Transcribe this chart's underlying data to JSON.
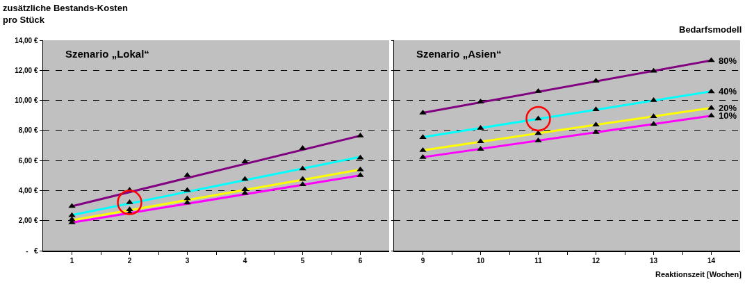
{
  "chart_data": [
    {
      "type": "line",
      "title": "Szenario „Lokal“",
      "ylabel": "zusätzliche Bestands-Kosten\npro Stück",
      "xlim": [
        0.5,
        6.5
      ],
      "xticks": [
        1,
        {
          "value": 1.5,
          "label": null
        },
        2,
        {
          "value": 2.5,
          "label": null
        },
        3,
        {
          "value": 3.5,
          "label": null
        },
        4,
        {
          "value": 4.5,
          "label": null
        },
        5,
        {
          "value": 5.5,
          "label": null
        },
        6
      ],
      "ylim": [
        0,
        14
      ],
      "yticks": [
        {
          "value": 0,
          "label": "-   €"
        },
        {
          "value": 2,
          "label": "2,00 €"
        },
        {
          "value": 4,
          "label": "4,00 €"
        },
        {
          "value": 6,
          "label": "6,00 €"
        },
        {
          "value": 8,
          "label": "8,00 €"
        },
        {
          "value": 10,
          "label": "10,00 €"
        },
        {
          "value": 12,
          "label": "12,00 €"
        },
        {
          "value": 14,
          "label": "14,00 €"
        }
      ],
      "grid": "y",
      "legend": false,
      "line_style": "solid",
      "series": [
        {
          "type": "line",
          "color": "#800080",
          "x": [
            1,
            6
          ],
          "values": [
            2.96,
            7.65
          ]
        },
        {
          "type": "line",
          "color": "#00ffff",
          "x": [
            1,
            6
          ],
          "values": [
            2.37,
            6.24
          ]
        },
        {
          "type": "line",
          "color": "#ffff00",
          "x": [
            1,
            6
          ],
          "values": [
            2.02,
            5.39
          ]
        },
        {
          "type": "line",
          "color": "#ff00ff",
          "x": [
            1,
            6
          ],
          "values": [
            1.87,
            5.01
          ]
        },
        {
          "type": "scatter",
          "marker": "triangle",
          "color": "#000000",
          "x": [
            1,
            2,
            3,
            4,
            5,
            6
          ],
          "values": [
            2.96,
            4.03,
            5.01,
            5.93,
            6.82,
            7.65
          ]
        },
        {
          "type": "scatter",
          "marker": "triangle",
          "color": "#000000",
          "x": [
            1,
            2,
            3,
            4,
            5,
            6
          ],
          "values": [
            2.34,
            3.21,
            4.02,
            4.76,
            5.45,
            6.18
          ]
        },
        {
          "type": "scatter",
          "marker": "triangle",
          "color": "#000000",
          "x": [
            1,
            2,
            3,
            4,
            5,
            6
          ],
          "values": [
            2.07,
            2.74,
            3.46,
            4.08,
            4.76,
            5.39
          ]
        },
        {
          "type": "scatter",
          "marker": "triangle",
          "color": "#000000",
          "x": [
            1,
            2,
            3,
            4,
            5,
            6
          ],
          "values": [
            1.87,
            2.52,
            3.19,
            3.82,
            4.4,
            5.01
          ]
        },
        {
          "type": "scatter",
          "marker": "circle",
          "color": "#ff0000",
          "x": [
            2
          ],
          "values": [
            3.21
          ]
        }
      ]
    },
    {
      "type": "line",
      "title": "Szenario „Asien“",
      "xlabel": "Reaktionszeit [Wochen]",
      "legend_title": "Bedarfsmodell",
      "xlim": [
        8.5,
        14.5
      ],
      "xticks": [
        9,
        {
          "value": 9.5,
          "label": null
        },
        10,
        {
          "value": 10.5,
          "label": null
        },
        11,
        {
          "value": 11.5,
          "label": null
        },
        12,
        {
          "value": 12.5,
          "label": null
        },
        13,
        {
          "value": 13.5,
          "label": null
        },
        14
      ],
      "ylim": [
        0,
        14
      ],
      "yticks": [
        0,
        2,
        4,
        6,
        8,
        10,
        12,
        14
      ],
      "tick_labels": "x",
      "grid": "y",
      "legend": false,
      "line_style": "solid",
      "series": [
        {
          "type": "line",
          "name": "80%",
          "color": "#800080",
          "x": [
            9,
            14
          ],
          "values": [
            9.17,
            12.66
          ]
        },
        {
          "type": "line",
          "name": "40%",
          "color": "#00ffff",
          "x": [
            9,
            14
          ],
          "values": [
            7.55,
            10.6
          ]
        },
        {
          "type": "line",
          "name": "20%",
          "color": "#ffff00",
          "x": [
            9,
            14
          ],
          "values": [
            6.68,
            9.5
          ]
        },
        {
          "type": "line",
          "name": "10%",
          "color": "#ff00ff",
          "x": [
            9,
            14
          ],
          "values": [
            6.22,
            8.98
          ]
        },
        {
          "type": "scatter",
          "marker": "triangle",
          "color": "#000000",
          "x": [
            9,
            10,
            11,
            12,
            13,
            14
          ],
          "values": [
            9.17,
            9.91,
            10.6,
            11.3,
            11.96,
            12.66
          ]
        },
        {
          "type": "scatter",
          "marker": "triangle",
          "color": "#000000",
          "x": [
            9,
            10,
            11,
            12,
            13,
            14
          ],
          "values": [
            7.54,
            8.15,
            8.78,
            9.39,
            10.0,
            10.58
          ]
        },
        {
          "type": "scatter",
          "marker": "triangle",
          "color": "#000000",
          "x": [
            9,
            10,
            11,
            12,
            13,
            14
          ],
          "values": [
            6.68,
            7.26,
            7.81,
            8.37,
            8.93,
            9.5
          ]
        },
        {
          "type": "scatter",
          "marker": "triangle",
          "color": "#000000",
          "x": [
            9,
            10,
            11,
            12,
            13,
            14
          ],
          "values": [
            6.22,
            6.76,
            7.32,
            7.88,
            8.42,
            8.98
          ]
        },
        {
          "type": "scatter",
          "marker": "circle",
          "color": "#ff0000",
          "x": [
            11
          ],
          "values": [
            8.78
          ]
        }
      ]
    }
  ]
}
